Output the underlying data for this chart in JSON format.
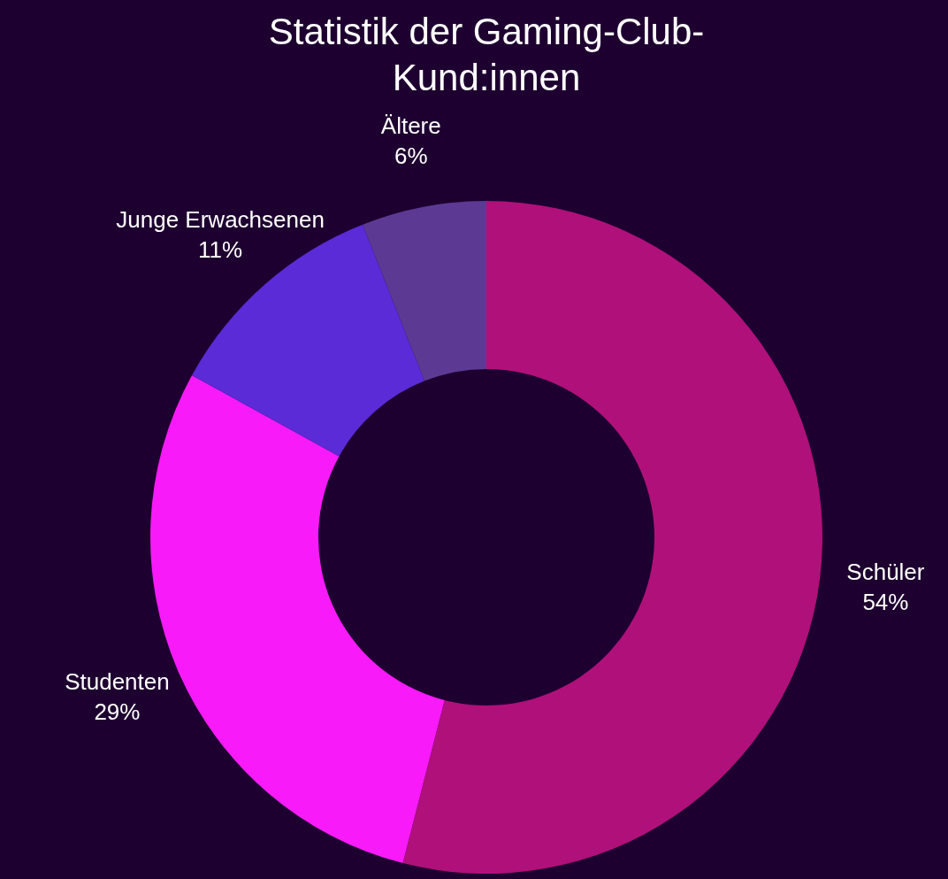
{
  "chart_data": {
    "type": "donut",
    "title": "Statistik der Gaming-Club-Kund:innen",
    "categories": [
      "Schüler",
      "Studenten",
      "Junge Erwachsenen",
      "Ältere"
    ],
    "values": [
      54,
      29,
      11,
      6
    ],
    "colors": [
      "#b0107a",
      "#f81af8",
      "#5a2bd6",
      "#5c3a94"
    ],
    "value_labels": [
      "54%",
      "29%",
      "11%",
      "6%"
    ],
    "legend": false
  }
}
